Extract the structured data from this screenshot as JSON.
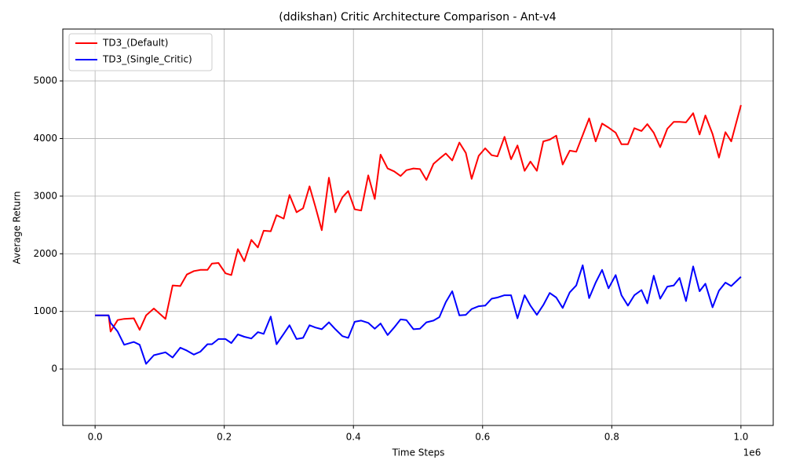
{
  "chart_data": {
    "type": "line",
    "title": "(ddikshan) Critic Architecture Comparison - Ant-v4",
    "x_label": "Time Steps",
    "y_label": "Average Return",
    "x_offset_label": "1e6",
    "x": [
      0,
      21000,
      24000,
      35000,
      45000,
      60000,
      69000,
      79000,
      91000,
      109000,
      120000,
      132000,
      142000,
      153000,
      163000,
      174000,
      181000,
      191000,
      202000,
      211000,
      221000,
      231000,
      242000,
      252000,
      261000,
      272000,
      281000,
      292000,
      301000,
      312000,
      322000,
      332000,
      341000,
      351000,
      362000,
      372000,
      383000,
      392000,
      402000,
      412000,
      423000,
      433000,
      442000,
      453000,
      463000,
      473000,
      482000,
      493000,
      503000,
      513000,
      524000,
      533000,
      543000,
      553000,
      564000,
      574000,
      583000,
      594000,
      604000,
      614000,
      623000,
      634000,
      644000,
      654000,
      665000,
      674000,
      684000,
      694000,
      704000,
      714000,
      724000,
      735000,
      745000,
      755000,
      765000,
      775000,
      785000,
      795000,
      806000,
      815000,
      825000,
      835000,
      846000,
      855000,
      865000,
      875000,
      886000,
      896000,
      905000,
      915000,
      926000,
      936000,
      945000,
      956000,
      966000,
      976000,
      985000,
      1000000
    ],
    "series": [
      {
        "name": "TD3_(Default)",
        "color": "#ff0000",
        "values": [
          930,
          930,
          650,
          850,
          870,
          880,
          680,
          930,
          1050,
          870,
          1450,
          1440,
          1640,
          1700,
          1720,
          1720,
          1830,
          1840,
          1660,
          1630,
          2080,
          1870,
          2240,
          2110,
          2400,
          2390,
          2670,
          2610,
          3020,
          2720,
          2790,
          3170,
          2820,
          2410,
          3320,
          2720,
          2980,
          3090,
          2770,
          2750,
          3360,
          2950,
          3720,
          3480,
          3430,
          3350,
          3450,
          3480,
          3470,
          3280,
          3560,
          3650,
          3740,
          3620,
          3930,
          3750,
          3300,
          3700,
          3830,
          3710,
          3690,
          4030,
          3640,
          3880,
          3440,
          3600,
          3440,
          3950,
          3980,
          4050,
          3550,
          3790,
          3770,
          4060,
          4350,
          3950,
          4260,
          4190,
          4100,
          3900,
          3900,
          4180,
          4130,
          4250,
          4100,
          3850,
          4170,
          4290,
          4290,
          4280,
          4440,
          4070,
          4400,
          4080,
          3670,
          4110,
          3950,
          4580
        ]
      },
      {
        "name": "TD3_(Single_Critic)",
        "color": "#0000ff",
        "values": [
          930,
          930,
          800,
          650,
          420,
          470,
          420,
          90,
          240,
          290,
          200,
          370,
          320,
          250,
          300,
          430,
          430,
          520,
          520,
          450,
          600,
          560,
          530,
          640,
          610,
          910,
          430,
          610,
          760,
          520,
          540,
          760,
          720,
          690,
          810,
          690,
          570,
          540,
          820,
          840,
          800,
          700,
          790,
          590,
          720,
          860,
          850,
          690,
          700,
          810,
          840,
          900,
          1160,
          1350,
          930,
          940,
          1040,
          1090,
          1100,
          1220,
          1240,
          1280,
          1280,
          880,
          1280,
          1100,
          940,
          1110,
          1320,
          1240,
          1060,
          1330,
          1450,
          1800,
          1230,
          1500,
          1720,
          1400,
          1630,
          1280,
          1100,
          1280,
          1370,
          1140,
          1620,
          1220,
          1430,
          1450,
          1580,
          1180,
          1780,
          1350,
          1480,
          1070,
          1360,
          1500,
          1440,
          1600
        ]
      }
    ],
    "xlim": [
      -50000,
      1050000
    ],
    "xticks": [
      {
        "value": 0,
        "label": "0.0"
      },
      {
        "value": 200000,
        "label": "0.2"
      },
      {
        "value": 400000,
        "label": "0.4"
      },
      {
        "value": 600000,
        "label": "0.6"
      },
      {
        "value": 800000,
        "label": "0.8"
      },
      {
        "value": 1000000,
        "label": "1.0"
      }
    ],
    "ylim": [
      -980,
      5900
    ],
    "yticks": [
      0,
      1000,
      2000,
      3000,
      4000,
      5000
    ],
    "grid": true,
    "legend": "upper left"
  }
}
